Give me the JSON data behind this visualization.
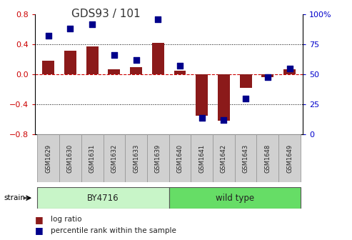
{
  "title": "GDS93 / 101",
  "categories": [
    "GSM1629",
    "GSM1630",
    "GSM1631",
    "GSM1632",
    "GSM1633",
    "GSM1639",
    "GSM1640",
    "GSM1641",
    "GSM1642",
    "GSM1643",
    "GSM1648",
    "GSM1649"
  ],
  "log_ratio": [
    0.18,
    0.32,
    0.37,
    0.07,
    0.1,
    0.42,
    0.05,
    -0.55,
    -0.62,
    -0.18,
    -0.04,
    0.07
  ],
  "percentile_rank": [
    82,
    88,
    92,
    66,
    62,
    96,
    57,
    14,
    12,
    30,
    48,
    55
  ],
  "bar_color": "#8B1A1A",
  "dot_color": "#00008B",
  "ylim_left": [
    -0.8,
    0.8
  ],
  "ylim_right": [
    0,
    100
  ],
  "yticks_left": [
    -0.8,
    -0.4,
    0.0,
    0.4,
    0.8
  ],
  "yticks_right": [
    0,
    25,
    50,
    75,
    100
  ],
  "ytick_labels_right": [
    "0",
    "25",
    "50",
    "75",
    "100%"
  ],
  "strain_groups": [
    {
      "label": "BY4716",
      "start": 0,
      "end": 6,
      "color": "#c8f5c8"
    },
    {
      "label": "wild type",
      "start": 6,
      "end": 12,
      "color": "#66dd66"
    }
  ],
  "strain_label": "strain",
  "legend_items": [
    {
      "label": "log ratio",
      "color": "#8B1A1A"
    },
    {
      "label": "percentile rank within the sample",
      "color": "#00008B"
    }
  ],
  "background_color": "#ffffff",
  "plot_bg_color": "#ffffff",
  "tick_label_bg": "#d0d0d0",
  "zero_line_color": "#cc0000",
  "grid_color": "#000000",
  "title_fontsize": 11,
  "bar_width": 0.55
}
